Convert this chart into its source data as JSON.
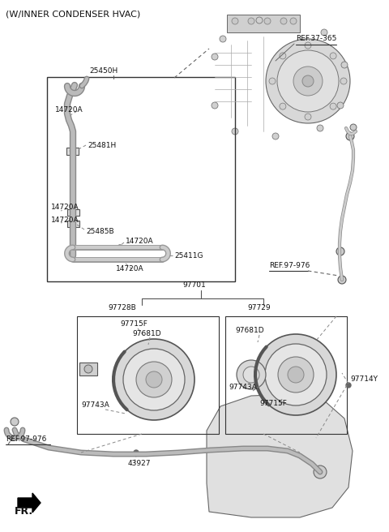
{
  "title": "(W/INNER CONDENSER HVAC)",
  "bg_color": "#ffffff",
  "line_color": "#555555",
  "labels": {
    "REF_37_365": "REF.37-365",
    "n25450H": "25450H",
    "n14720A_top": "14720A",
    "n25481H": "25481H",
    "n14720A_mid1": "14720A",
    "n14720A_mid2": "14720A",
    "n25485B": "25485B",
    "n25411G": "25411G",
    "n14720A_bot": "14720A",
    "REF_97_976_top": "REF.97-976",
    "n97701": "97701",
    "n97728B": "97728B",
    "n97729": "97729",
    "n97715F_left": "97715F",
    "n97681D_left": "97681D",
    "n97743A_left": "97743A",
    "n97681D_right": "97681D",
    "n97743A_right": "97743A",
    "n97715F_right": "97715F",
    "n97714Y": "97714Y",
    "n43927": "43927",
    "REF_97_976_bot": "REF.97-976",
    "FR": "FR."
  }
}
